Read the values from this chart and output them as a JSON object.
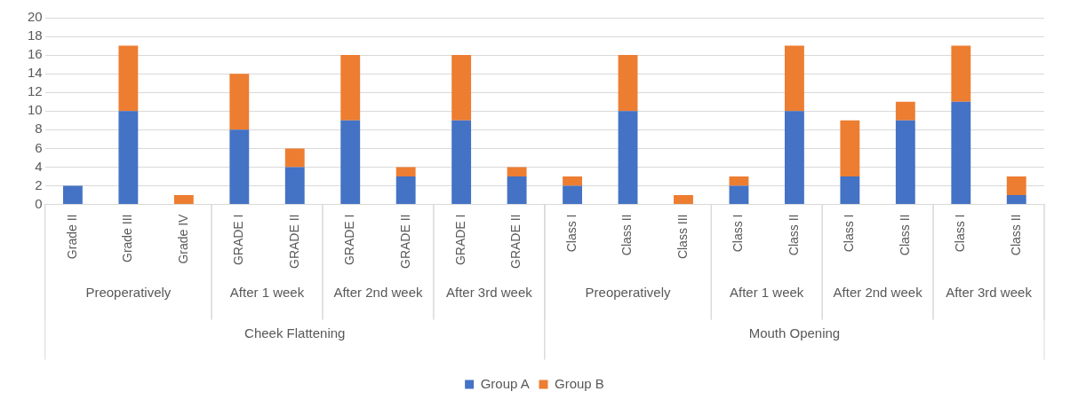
{
  "chart_data": {
    "type": "bar",
    "stacked": true,
    "categories": [
      "Grade II",
      "Grade III",
      "Grade IV",
      "GRADE I",
      "GRADE II",
      "GRADE I",
      "GRADE II",
      "GRADE I",
      "GRADE II",
      "Class I",
      "Class II",
      "Class III",
      "Class I",
      "Class II",
      "Class I",
      "Class II",
      "Class I",
      "Class II"
    ],
    "series": [
      {
        "name": "Group A",
        "color": "#4472c4",
        "values": [
          2,
          10,
          0,
          8,
          4,
          9,
          3,
          9,
          3,
          2,
          10,
          0,
          2,
          10,
          3,
          9,
          11,
          1
        ]
      },
      {
        "name": "Group B",
        "color": "#ed7d31",
        "values": [
          0,
          7,
          1,
          6,
          2,
          7,
          1,
          7,
          1,
          1,
          6,
          1,
          1,
          7,
          6,
          2,
          6,
          2
        ]
      }
    ],
    "annotations": [
      "Preoperatively",
      "After 1 week",
      "After 2nd week",
      "After 3rd week",
      "Preoperatively",
      "After 1 week",
      "After 2nd week",
      "After 3rd week",
      "Cheek Flattening",
      "Mouth Opening"
    ],
    "ylim": [
      0,
      20
    ],
    "yticks": [
      0,
      2,
      4,
      6,
      8,
      10,
      12,
      14,
      16,
      18,
      20
    ],
    "grid": "y",
    "legend": "bottom"
  }
}
